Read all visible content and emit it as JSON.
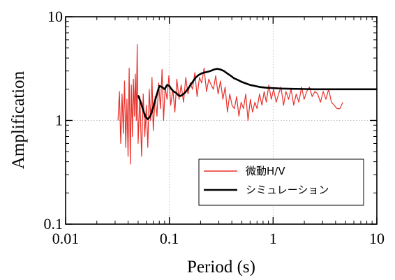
{
  "chart_data": {
    "type": "line",
    "xscale": "log",
    "yscale": "log",
    "xlim": [
      0.01,
      10
    ],
    "ylim": [
      0.1,
      10
    ],
    "xlabel": "Period (s)",
    "ylabel": "Amplification",
    "x_ticks": [
      {
        "value": 0.01,
        "label": "0.01"
      },
      {
        "value": 0.1,
        "label": "0.1"
      },
      {
        "value": 1,
        "label": "1"
      },
      {
        "value": 10,
        "label": "10"
      }
    ],
    "y_ticks": [
      {
        "value": 0.1,
        "label": "0.1"
      },
      {
        "value": 1,
        "label": "1"
      },
      {
        "value": 10,
        "label": "10"
      }
    ],
    "grid": true,
    "legend_position": "lower-right",
    "series": [
      {
        "name": "微動H/V",
        "color": "#e8302a",
        "x": [
          0.032,
          0.033,
          0.034,
          0.035,
          0.036,
          0.037,
          0.038,
          0.039,
          0.04,
          0.041,
          0.042,
          0.043,
          0.044,
          0.045,
          0.046,
          0.047,
          0.048,
          0.049,
          0.05,
          0.052,
          0.054,
          0.056,
          0.058,
          0.06,
          0.062,
          0.064,
          0.066,
          0.068,
          0.07,
          0.073,
          0.076,
          0.079,
          0.082,
          0.085,
          0.088,
          0.091,
          0.095,
          0.099,
          0.103,
          0.108,
          0.113,
          0.118,
          0.124,
          0.13,
          0.137,
          0.144,
          0.151,
          0.159,
          0.167,
          0.176,
          0.185,
          0.195,
          0.205,
          0.216,
          0.228,
          0.24,
          0.253,
          0.266,
          0.28,
          0.295,
          0.311,
          0.328,
          0.345,
          0.363,
          0.382,
          0.402,
          0.423,
          0.445,
          0.468,
          0.492,
          0.518,
          0.545,
          0.573,
          0.603,
          0.634,
          0.667,
          0.7,
          0.74,
          0.78,
          0.82,
          0.86,
          0.91,
          0.96,
          1.01,
          1.07,
          1.13,
          1.19,
          1.26,
          1.33,
          1.41,
          1.49,
          1.58,
          1.67,
          1.77,
          1.88,
          1.99,
          2.11,
          2.24,
          2.38,
          2.53,
          2.69,
          2.86,
          3.04,
          3.23,
          3.43,
          3.65,
          3.88,
          4.13,
          4.4,
          4.7
        ],
        "y": [
          1.0,
          1.9,
          0.6,
          1.8,
          0.75,
          2.4,
          0.55,
          1.6,
          0.45,
          3.2,
          0.38,
          2.2,
          0.7,
          2.5,
          1.1,
          2.8,
          1.0,
          5.4,
          0.6,
          1.7,
          0.45,
          1.8,
          0.7,
          1.4,
          0.55,
          2.0,
          1.0,
          2.6,
          0.8,
          1.7,
          1.1,
          2.3,
          1.3,
          3.1,
          1.0,
          2.1,
          1.6,
          2.7,
          1.4,
          2.0,
          1.2,
          2.5,
          1.6,
          2.2,
          1.5,
          2.6,
          1.8,
          2.3,
          2.0,
          2.9,
          1.7,
          2.6,
          2.3,
          3.2,
          1.9,
          2.5,
          2.2,
          2.0,
          2.7,
          1.8,
          2.4,
          1.6,
          2.1,
          1.2,
          1.8,
          1.4,
          1.3,
          1.7,
          1.1,
          1.5,
          1.3,
          1.8,
          1.0,
          1.6,
          1.2,
          1.5,
          1.3,
          1.8,
          1.4,
          1.9,
          1.5,
          2.2,
          1.6,
          2.0,
          1.5,
          1.8,
          2.1,
          1.4,
          1.9,
          1.6,
          2.0,
          1.4,
          1.8,
          1.5,
          2.1,
          1.6,
          1.9,
          2.1,
          1.7,
          1.9,
          1.8,
          1.5,
          1.9,
          1.6,
          2.0,
          1.5,
          1.4,
          1.3,
          1.3,
          1.5
        ]
      },
      {
        "name": "シミュレーション",
        "color": "#000000",
        "x": [
          0.05,
          0.053,
          0.056,
          0.059,
          0.062,
          0.065,
          0.068,
          0.072,
          0.076,
          0.08,
          0.085,
          0.09,
          0.095,
          0.1,
          0.105,
          0.11,
          0.116,
          0.122,
          0.128,
          0.135,
          0.142,
          0.15,
          0.16,
          0.17,
          0.18,
          0.192,
          0.205,
          0.22,
          0.235,
          0.25,
          0.27,
          0.29,
          0.31,
          0.335,
          0.36,
          0.39,
          0.42,
          0.46,
          0.5,
          0.55,
          0.6,
          0.67,
          0.75,
          0.85,
          1.0,
          1.2,
          1.5,
          2.0,
          2.5,
          3.0,
          4.0,
          5.0,
          7.0,
          10.0
        ],
        "y": [
          1.75,
          1.5,
          1.25,
          1.08,
          1.03,
          1.08,
          1.22,
          1.5,
          1.8,
          2.15,
          2.1,
          2.0,
          2.2,
          2.15,
          2.0,
          1.9,
          1.85,
          1.75,
          1.72,
          1.78,
          1.86,
          2.0,
          2.2,
          2.4,
          2.6,
          2.75,
          2.85,
          2.9,
          2.95,
          3.0,
          3.1,
          3.15,
          3.1,
          3.0,
          2.85,
          2.7,
          2.55,
          2.45,
          2.35,
          2.27,
          2.2,
          2.15,
          2.1,
          2.07,
          2.05,
          2.03,
          2.02,
          2.01,
          2.0,
          2.0,
          2.0,
          2.0,
          2.0,
          2.0
        ]
      }
    ]
  }
}
